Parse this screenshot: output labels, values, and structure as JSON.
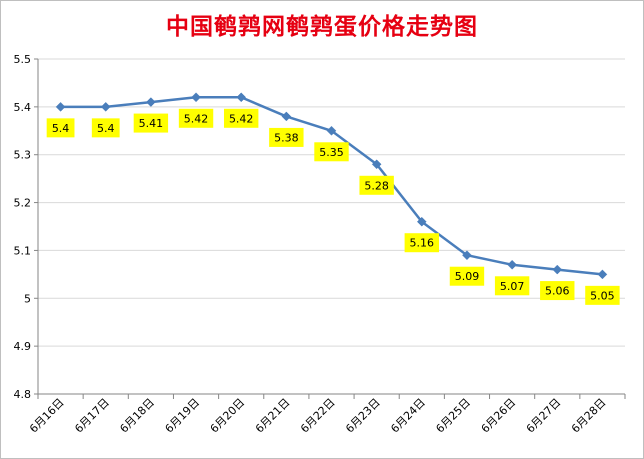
{
  "chart_data": {
    "type": "line",
    "title": "中国鹌鹑网鹌鹑蛋价格走势图",
    "xlabel": "",
    "ylabel": "",
    "categories": [
      "6月16日",
      "6月17日",
      "6月18日",
      "6月19日",
      "6月20日",
      "6月21日",
      "6月22日",
      "6月23日",
      "6月24日",
      "6月25日",
      "6月26日",
      "6月27日",
      "6月28日"
    ],
    "series": [
      {
        "values": [
          5.4,
          5.4,
          5.41,
          5.42,
          5.42,
          5.38,
          5.35,
          5.28,
          5.16,
          5.09,
          5.07,
          5.06,
          5.05
        ],
        "data_labels": [
          "5.4",
          "5.4",
          "5.41",
          "5.42",
          "5.42",
          "5.38",
          "5.35",
          "5.28",
          "5.16",
          "5.09",
          "5.07",
          "5.06",
          "5.05"
        ],
        "color": "#4a7ebb"
      }
    ],
    "ylim": [
      4.8,
      5.5
    ],
    "yticks": [
      4.8,
      4.9,
      5,
      5.1,
      5.2,
      5.3,
      5.4,
      5.5
    ],
    "ytick_labels": [
      "4.8",
      "4.9",
      "5",
      "5.1",
      "5.2",
      "5.3",
      "5.4",
      "5.5"
    ],
    "grid": true,
    "legend": "none",
    "marker": "diamond",
    "colors": {
      "title": "#e60012",
      "line": "#4a7ebb",
      "label_background": "#ffff00",
      "gridline": "#d9d9d9",
      "axis": "#868686"
    }
  }
}
